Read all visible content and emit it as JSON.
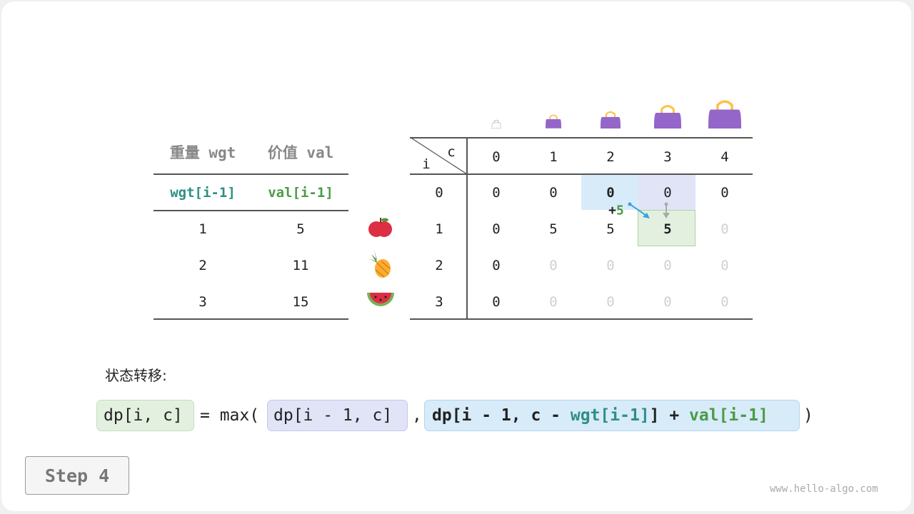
{
  "items_table": {
    "headers": [
      "重量 wgt",
      "价值 val"
    ],
    "subheaders": [
      "wgt[i-1]",
      "val[i-1]"
    ],
    "rows": [
      {
        "wgt": "1",
        "val": "5",
        "item": "apple-icon"
      },
      {
        "wgt": "2",
        "val": "11",
        "item": "pineapple-icon"
      },
      {
        "wgt": "3",
        "val": "15",
        "item": "watermelon-icon"
      }
    ]
  },
  "dp_table": {
    "corner_col": "c",
    "corner_row": "i",
    "capacities": [
      "0",
      "1",
      "2",
      "3",
      "4"
    ],
    "row_labels": [
      "0",
      "1",
      "2",
      "3"
    ],
    "cells": [
      [
        "0",
        "0",
        "0",
        "0",
        "0"
      ],
      [
        "0",
        "5",
        "5",
        "5",
        "0"
      ],
      [
        "0",
        "0",
        "0",
        "0",
        "0"
      ],
      [
        "0",
        "0",
        "0",
        "0",
        "0"
      ]
    ],
    "filled": [
      [
        true,
        true,
        true,
        true,
        true
      ],
      [
        true,
        true,
        true,
        true,
        false
      ],
      [
        true,
        false,
        false,
        false,
        false
      ],
      [
        true,
        false,
        false,
        false,
        false
      ]
    ],
    "annotation": {
      "plus": "+",
      "value": "5"
    }
  },
  "transition": {
    "label": "状态转移:",
    "lhs": "dp[i, c]",
    "eq": "= max(",
    "opt1": "dp[i - 1, c]",
    "comma": ",",
    "opt2_a": "dp[i - 1, c - ",
    "opt2_wgt": "wgt[i-1]",
    "opt2_b": "] + ",
    "opt2_val": "val[i-1]",
    "close": ")"
  },
  "step_button": "Step 4",
  "watermark": "www.hello-algo.com",
  "colors": {
    "wgt": "#2e8f85",
    "val": "#4a9b45",
    "purple_bag": "#9466c9",
    "green_cell": "#e3f0e0",
    "blue_cell": "#d8ebf9",
    "lavender_cell": "#e1e4f7"
  }
}
